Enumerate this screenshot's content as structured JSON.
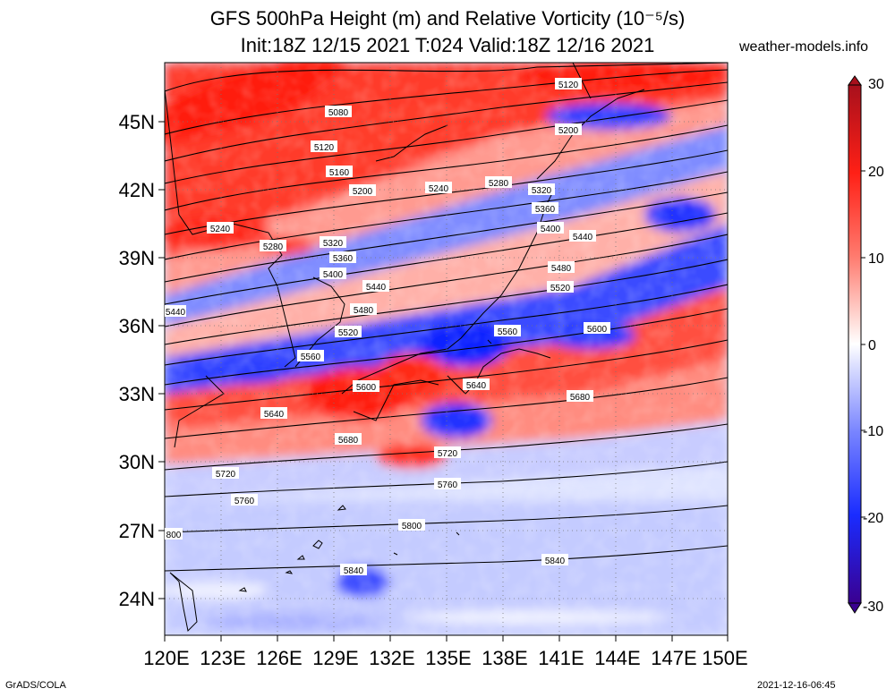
{
  "title": {
    "line1": "GFS 500hPa Height (m) and Relative Vorticity (10⁻⁵/s)",
    "line2": "Init:18Z 12/15 2021 T:024 Valid:18Z 12/16 2021"
  },
  "site": "weather-models.info",
  "footer": {
    "left": "GrADS/COLA",
    "right": "2021-12-16-06:45"
  },
  "lat_labels": [
    "45N",
    "42N",
    "39N",
    "36N",
    "33N",
    "30N",
    "27N",
    "24N"
  ],
  "lon_labels": [
    "120E",
    "123E",
    "126E",
    "129E",
    "132E",
    "135E",
    "138E",
    "141E",
    "144E",
    "147E",
    "150E"
  ],
  "colorbar": {
    "labels": [
      "30",
      "20",
      "10",
      "0",
      "-10",
      "-20",
      "-30"
    ],
    "colors": {
      "max": "#b8121c",
      "pos": "#ff2a1a",
      "zero": "#ffffff",
      "neg": "#1a2cff",
      "min": "#3a0090"
    }
  },
  "contours": [
    "5080",
    "5120",
    "5160",
    "5200",
    "5240",
    "5280",
    "5320",
    "5360",
    "5400",
    "5440",
    "5480",
    "5520",
    "5560",
    "5600",
    "5640",
    "5680",
    "5720",
    "5760",
    "5800",
    "5840"
  ],
  "contour_labels": [
    {
      "id": "c5120a",
      "text": "5120"
    },
    {
      "id": "c5080",
      "text": "5080"
    },
    {
      "id": "c5200a",
      "text": "5200"
    },
    {
      "id": "c5120b",
      "text": "5120"
    },
    {
      "id": "c5160",
      "text": "5160"
    },
    {
      "id": "c5200b",
      "text": "5200"
    },
    {
      "id": "c5240a",
      "text": "5240"
    },
    {
      "id": "c5280a",
      "text": "5280"
    },
    {
      "id": "c5320a",
      "text": "5320"
    },
    {
      "id": "c5360a",
      "text": "5360"
    },
    {
      "id": "c5240b",
      "text": "5240"
    },
    {
      "id": "c5280b",
      "text": "5280"
    },
    {
      "id": "c5400a",
      "text": "5400"
    },
    {
      "id": "c5440a",
      "text": "5440"
    },
    {
      "id": "c5320b",
      "text": "5320"
    },
    {
      "id": "c5360b",
      "text": "5360"
    },
    {
      "id": "c5400b",
      "text": "5400"
    },
    {
      "id": "c5480a",
      "text": "5480"
    },
    {
      "id": "c5440b",
      "text": "5440"
    },
    {
      "id": "c5520a",
      "text": "5520"
    },
    {
      "id": "c5440c",
      "text": "5440"
    },
    {
      "id": "c5480b",
      "text": "5480"
    },
    {
      "id": "c5600a",
      "text": "5600"
    },
    {
      "id": "c5520b",
      "text": "5520"
    },
    {
      "id": "c5560a",
      "text": "5560"
    },
    {
      "id": "c5560b",
      "text": "5560"
    },
    {
      "id": "c5600b",
      "text": "5600"
    },
    {
      "id": "c5640a",
      "text": "5640"
    },
    {
      "id": "c5680a",
      "text": "5680"
    },
    {
      "id": "c5640b",
      "text": "5640"
    },
    {
      "id": "c5680b",
      "text": "5680"
    },
    {
      "id": "c5720a",
      "text": "5720"
    },
    {
      "id": "c5720b",
      "text": "5720"
    },
    {
      "id": "c5760a",
      "text": "5760"
    },
    {
      "id": "c5760b",
      "text": "5760"
    },
    {
      "id": "c5800a",
      "text": "5800"
    },
    {
      "id": "c5800b",
      "text": "800"
    },
    {
      "id": "c5840a",
      "text": "5840"
    },
    {
      "id": "c5840b",
      "text": "5840"
    }
  ]
}
